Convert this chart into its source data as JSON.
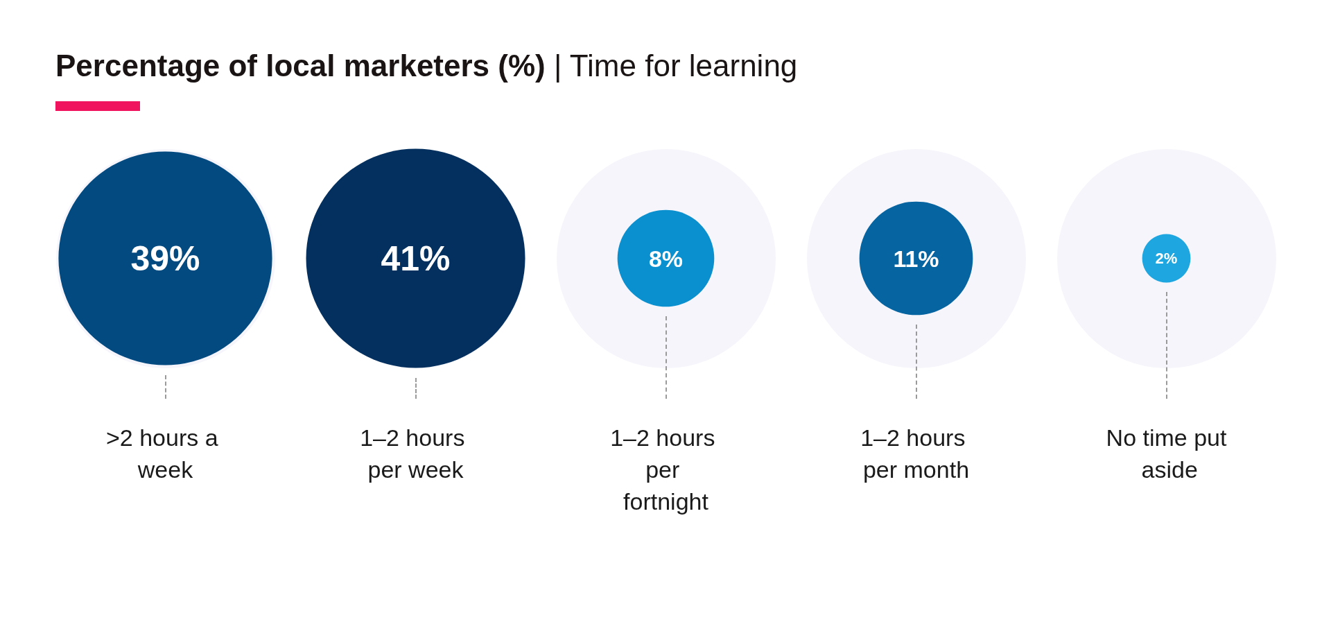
{
  "chart_data": {
    "type": "other",
    "title": "Percentage of local marketers (%)",
    "subtitle": "| Time for learning",
    "categories": [
      ">2 hours a week",
      "1–2 hours per week",
      "1–2 hours per fortnight",
      "1–2 hours per month",
      "No time put aside"
    ],
    "values": [
      39,
      41,
      8,
      11,
      2
    ],
    "value_labels": [
      "39%",
      "41%",
      "8%",
      "11%",
      "2%"
    ],
    "colors": [
      "#034a80",
      "#03305e",
      "#0a8fcf",
      "#0664a0",
      "#1ea6e0"
    ]
  }
}
